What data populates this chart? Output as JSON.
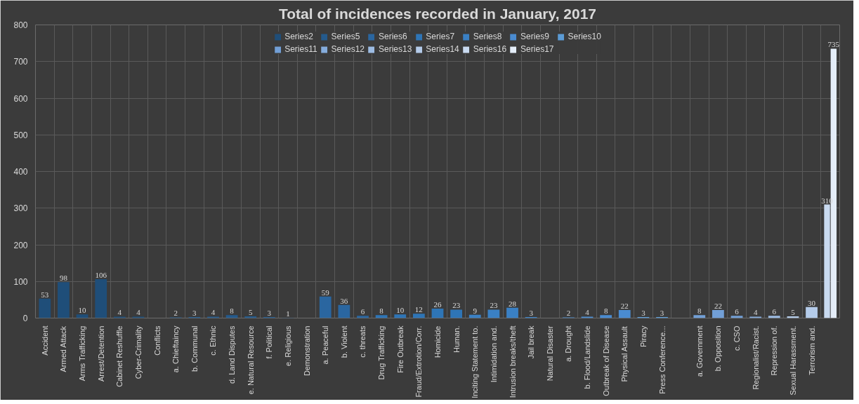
{
  "chart_data": {
    "type": "bar",
    "title": "Total of incidences recorded in January, 2017",
    "categories": [
      "Accident",
      "Armed Attack",
      "Arms Trafficking",
      "Arrest/Detention",
      "Cabinet Reshuffle",
      "Cyber-Crimality",
      "Conflicts",
      "a. Chieftaincy",
      "b. Communal",
      "c. Ethnic",
      "d. Land Disputes",
      "e. Natural Resource",
      "f. Political",
      "e. Religious",
      "Demonstration",
      "a. Peaceful",
      "b. Violent",
      "c. threats",
      "Drug Trafficking",
      "Fire Outbreak",
      "Fraud/Extrotion/Corr.",
      "Homicide",
      "Human.",
      "Inciting Statement to.",
      "Intimidation and.",
      "Intrusion breaks/theft",
      "Jail break",
      "Natural Disaster",
      "a. Drought",
      "b. Flood/Landslide",
      "Outbreak of Disease",
      "Physical Assault",
      "Piracy",
      "Press Conference...",
      null,
      "a. Government",
      "b. Opposition",
      "c. CSO",
      "Regionalist/Racist.",
      "Repression of.",
      "Sexual Harassment.",
      "Terrorism and.",
      null
    ],
    "series": [
      {
        "name": "Series2",
        "color": "#1f4e79",
        "values": [
          53,
          98,
          10,
          106,
          4,
          4,
          null,
          null,
          null,
          null,
          null,
          null,
          null,
          null,
          null,
          null,
          null,
          null,
          null,
          null,
          null,
          null,
          null,
          null,
          null,
          null,
          null,
          null,
          null,
          null,
          null,
          null,
          null,
          null,
          null,
          null,
          null,
          null,
          null,
          null,
          null,
          null,
          null
        ]
      },
      {
        "name": "Series5",
        "color": "#245a8c",
        "values": [
          null,
          null,
          null,
          null,
          null,
          null,
          null,
          2,
          3,
          4,
          8,
          5,
          3,
          1,
          null,
          null,
          null,
          null,
          null,
          null,
          null,
          null,
          null,
          null,
          null,
          null,
          null,
          null,
          null,
          null,
          null,
          null,
          null,
          null,
          null,
          null,
          null,
          null,
          null,
          null,
          null,
          null,
          null
        ]
      },
      {
        "name": "Series6",
        "color": "#2a66a0",
        "values": [
          null,
          null,
          null,
          null,
          null,
          null,
          null,
          null,
          null,
          null,
          null,
          null,
          null,
          null,
          null,
          59,
          36,
          6,
          null,
          null,
          null,
          null,
          null,
          null,
          null,
          null,
          null,
          null,
          null,
          null,
          null,
          null,
          null,
          null,
          null,
          null,
          null,
          null,
          null,
          null,
          null,
          null,
          null
        ]
      },
      {
        "name": "Series7",
        "color": "#2e75b6",
        "values": [
          null,
          null,
          null,
          null,
          null,
          null,
          null,
          null,
          null,
          null,
          null,
          null,
          null,
          null,
          null,
          null,
          null,
          null,
          8,
          10,
          12,
          26,
          23,
          null,
          null,
          null,
          null,
          null,
          null,
          null,
          null,
          null,
          null,
          null,
          null,
          null,
          null,
          null,
          null,
          null,
          null,
          null,
          null
        ]
      },
      {
        "name": "Series8",
        "color": "#3a80c4",
        "values": [
          null,
          null,
          null,
          null,
          null,
          null,
          null,
          null,
          null,
          null,
          null,
          null,
          null,
          null,
          null,
          null,
          null,
          null,
          null,
          null,
          null,
          null,
          null,
          9,
          23,
          28,
          3,
          null,
          null,
          null,
          null,
          null,
          null,
          null,
          null,
          null,
          null,
          null,
          null,
          null,
          null,
          null,
          null
        ]
      },
      {
        "name": "Series9",
        "color": "#4a8bd0",
        "values": [
          null,
          null,
          null,
          null,
          null,
          null,
          null,
          null,
          null,
          null,
          null,
          null,
          null,
          null,
          null,
          null,
          null,
          null,
          null,
          null,
          null,
          null,
          null,
          null,
          null,
          null,
          null,
          null,
          2,
          4,
          8,
          22,
          null,
          null,
          null,
          null,
          null,
          null,
          null,
          null,
          null,
          null,
          null
        ]
      },
      {
        "name": "Series10",
        "color": "#5b9bd5",
        "values": [
          null,
          null,
          null,
          null,
          null,
          null,
          null,
          null,
          null,
          null,
          null,
          null,
          null,
          null,
          null,
          null,
          null,
          null,
          null,
          null,
          null,
          null,
          null,
          null,
          null,
          null,
          null,
          null,
          null,
          null,
          null,
          null,
          3,
          3,
          null,
          null,
          null,
          null,
          null,
          null,
          null,
          null,
          null
        ]
      },
      {
        "name": "Series11",
        "color": "#729fd6",
        "values": [
          null,
          null,
          null,
          null,
          null,
          null,
          null,
          null,
          null,
          null,
          null,
          null,
          null,
          null,
          null,
          null,
          null,
          null,
          null,
          null,
          null,
          null,
          null,
          null,
          null,
          null,
          null,
          null,
          null,
          null,
          null,
          null,
          null,
          null,
          null,
          8,
          22,
          6,
          null,
          null,
          null,
          null,
          null
        ]
      },
      {
        "name": "Series12",
        "color": "#85acdc",
        "values": [
          null,
          null,
          null,
          null,
          null,
          null,
          null,
          null,
          null,
          null,
          null,
          null,
          null,
          null,
          null,
          null,
          null,
          null,
          null,
          null,
          null,
          null,
          null,
          null,
          null,
          null,
          null,
          null,
          null,
          null,
          null,
          null,
          null,
          null,
          null,
          null,
          null,
          null,
          4,
          null,
          null,
          null,
          null
        ]
      },
      {
        "name": "Series13",
        "color": "#9dbce3",
        "values": [
          null,
          null,
          null,
          null,
          null,
          null,
          null,
          null,
          null,
          null,
          null,
          null,
          null,
          null,
          null,
          null,
          null,
          null,
          null,
          null,
          null,
          null,
          null,
          null,
          null,
          null,
          null,
          null,
          null,
          null,
          null,
          null,
          null,
          null,
          null,
          null,
          null,
          null,
          null,
          6,
          null,
          null,
          null
        ]
      },
      {
        "name": "Series14",
        "color": "#b4cbe9",
        "values": [
          null,
          null,
          null,
          null,
          null,
          null,
          null,
          null,
          null,
          null,
          null,
          null,
          null,
          null,
          null,
          null,
          null,
          null,
          null,
          null,
          null,
          null,
          null,
          null,
          null,
          null,
          null,
          null,
          null,
          null,
          null,
          null,
          null,
          null,
          null,
          null,
          null,
          null,
          null,
          null,
          5,
          30,
          null
        ]
      },
      {
        "name": "Series16",
        "color": "#c9daf0",
        "values": [
          null,
          null,
          null,
          null,
          null,
          null,
          null,
          null,
          null,
          null,
          null,
          null,
          null,
          null,
          null,
          null,
          null,
          null,
          null,
          null,
          null,
          null,
          null,
          null,
          null,
          null,
          null,
          null,
          null,
          null,
          null,
          null,
          null,
          null,
          null,
          null,
          null,
          null,
          null,
          null,
          null,
          null,
          310
        ]
      },
      {
        "name": "Series17",
        "color": "#e4edf8",
        "values": [
          null,
          null,
          null,
          null,
          null,
          null,
          null,
          null,
          null,
          null,
          null,
          null,
          null,
          null,
          null,
          null,
          null,
          null,
          null,
          null,
          null,
          null,
          null,
          null,
          null,
          null,
          null,
          null,
          null,
          null,
          null,
          null,
          null,
          null,
          null,
          null,
          null,
          null,
          null,
          null,
          null,
          null,
          735
        ]
      }
    ],
    "ylim": [
      0,
      800
    ],
    "yticks": [
      0,
      100,
      200,
      300,
      400,
      500,
      600,
      700,
      800
    ],
    "grid": true,
    "legend": "top",
    "data_labels": true
  }
}
